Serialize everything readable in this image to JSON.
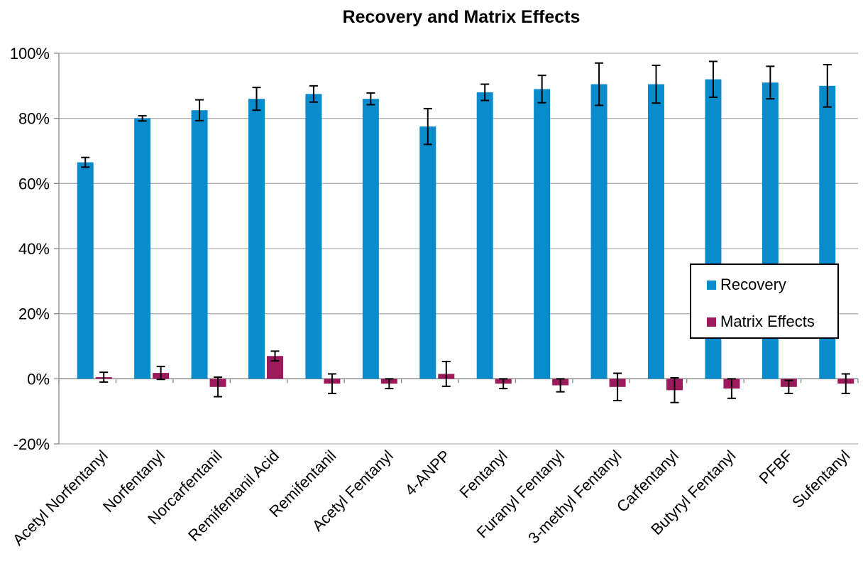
{
  "chart_data": {
    "type": "bar",
    "title": "Recovery and Matrix Effects",
    "xlabel": "",
    "ylabel": "",
    "ylim": [
      -20,
      100
    ],
    "y_ticks": [
      "100%",
      "80%",
      "60%",
      "40%",
      "20%",
      "0%",
      "-20%"
    ],
    "y_tick_values": [
      100,
      80,
      60,
      40,
      20,
      0,
      -20
    ],
    "grid": true,
    "legend_position": "right",
    "categories": [
      "Acetyl Norfentanyl",
      "Norfentanyl",
      "Norcarfentanil",
      "Remifentanil Acid",
      "Remifentanil",
      "Acetyl Fentanyl",
      "4-ANPP",
      "Fentanyl",
      "Furanyl Fentanyl",
      "3-methyl Fentanyl",
      "Carfentanyl",
      "Butyryl Fentanyl",
      "PFBF",
      "Sufentanyl"
    ],
    "series": [
      {
        "name": "Recovery",
        "color": "#0a8ccc",
        "values": [
          66.5,
          80,
          82.5,
          86,
          87.5,
          86,
          77.5,
          88,
          89,
          90.5,
          90.5,
          92,
          91,
          90
        ],
        "error": [
          1.5,
          0.8,
          3.2,
          3.5,
          2.5,
          1.8,
          5.5,
          2.5,
          4.2,
          6.5,
          5.8,
          5.5,
          5,
          6.5
        ]
      },
      {
        "name": "Matrix Effects",
        "color": "#9b1a5b",
        "values": [
          0.5,
          1.8,
          -2.5,
          7,
          -1.5,
          -1.5,
          1.5,
          -1.5,
          -2,
          -2.5,
          -3.5,
          -3,
          -2.5,
          -1.5
        ],
        "error": [
          1.5,
          2,
          3,
          1.5,
          3,
          1.5,
          3.8,
          1.5,
          2,
          4.2,
          3.8,
          3,
          2,
          3
        ]
      }
    ]
  }
}
